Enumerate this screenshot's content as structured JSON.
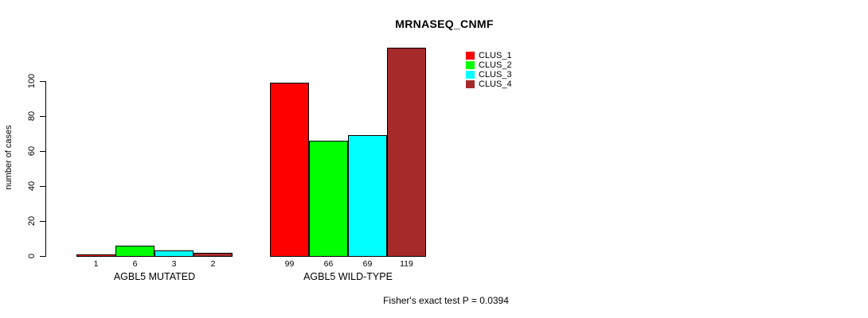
{
  "header": {
    "title": "MRNASEQ_CNMF"
  },
  "y_axis": {
    "label": "number of cases"
  },
  "footer": {
    "note": "Fisher's exact test P = 0.0394"
  },
  "chart_data": {
    "type": "bar",
    "title": "MRNASEQ_CNMF",
    "xlabel": "",
    "ylabel": "number of cases",
    "ylim": [
      0,
      120
    ],
    "yticks": [
      0,
      20,
      40,
      60,
      80,
      100
    ],
    "grid": false,
    "legend_position": "top-right",
    "categories": [
      "AGBL5 MUTATED",
      "AGBL5 WILD-TYPE"
    ],
    "series": [
      {
        "name": "CLUS_1",
        "color": "#ff0000",
        "values": [
          1,
          99
        ]
      },
      {
        "name": "CLUS_2",
        "color": "#00ff00",
        "values": [
          6,
          66
        ]
      },
      {
        "name": "CLUS_3",
        "color": "#00ffff",
        "values": [
          3,
          69
        ]
      },
      {
        "name": "CLUS_4",
        "color": "#a52a2a",
        "values": [
          2,
          119
        ]
      }
    ],
    "bar_value_labels": [
      [
        1,
        6,
        3,
        2
      ],
      [
        99,
        66,
        69,
        119
      ]
    ],
    "annotation": "Fisher's exact test P = 0.0394"
  }
}
